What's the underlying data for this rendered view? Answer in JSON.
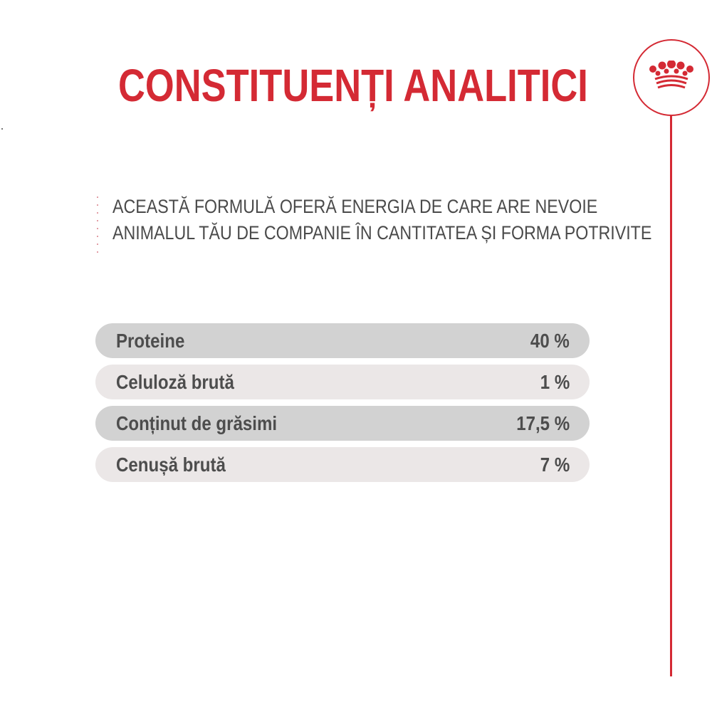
{
  "header": {
    "title": "CONSTITUENȚI ANALITICI"
  },
  "brand": {
    "logo_icon": "crown-icon",
    "accent_color": "#d42a34"
  },
  "intro": {
    "line1": "ACEASTĂ FORMULĂ OFERĂ ENERGIA DE CARE ARE NEVOIE",
    "line2": "ANIMALUL TĂU DE COMPANIE ÎN CANTITATEA ȘI FORMA POTRIVITE"
  },
  "constituents": [
    {
      "label": "Proteine",
      "value": "40 %"
    },
    {
      "label": "Celuloză brută",
      "value": "1 %"
    },
    {
      "label": "Conținut de grăsimi",
      "value": "17,5 %"
    },
    {
      "label": "Cenușă brută",
      "value": "7 %"
    }
  ]
}
